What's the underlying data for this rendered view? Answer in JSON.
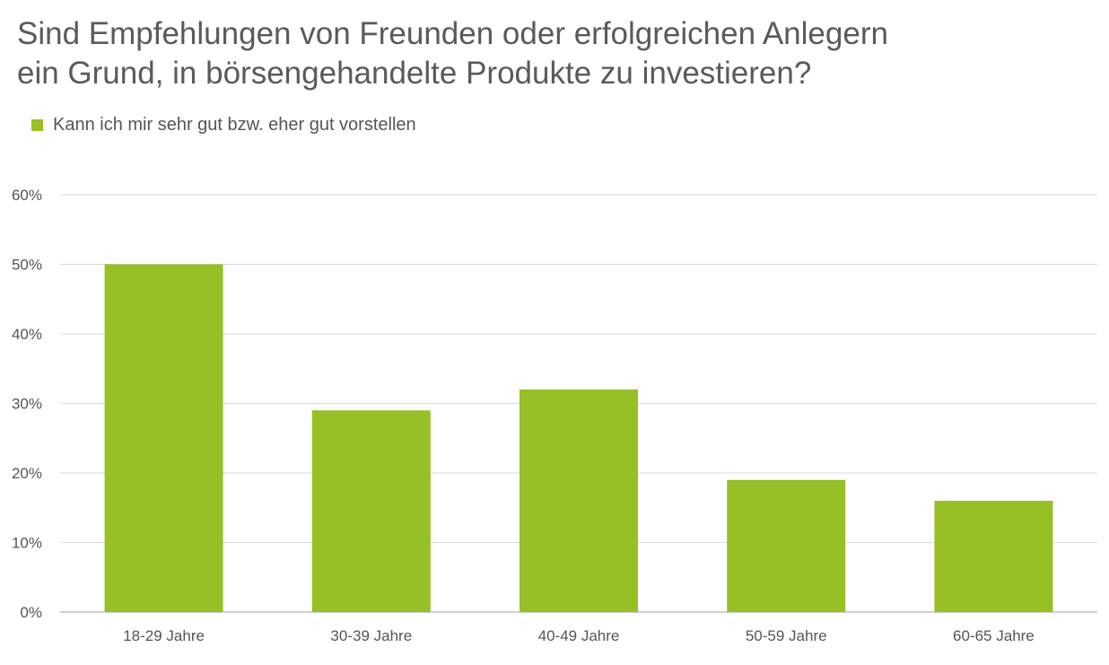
{
  "title": {
    "line1": "Sind Empfehlungen von Freunden oder erfolgreichen Anlegern",
    "line2": "ein Grund, in börsengehandelte Produkte zu investieren?"
  },
  "colors": {
    "bar": "#97c026",
    "grid": "#d9d9d9",
    "text": "#555555"
  },
  "chart_data": {
    "type": "bar",
    "categories": [
      "18-29 Jahre",
      "30-39 Jahre",
      "40-49 Jahre",
      "50-59 Jahre",
      "60-65 Jahre"
    ],
    "series": [
      {
        "name": "Kann ich mir sehr gut bzw. eher gut vorstellen",
        "values": [
          50,
          29,
          32,
          19,
          16
        ]
      }
    ],
    "yticks": [
      "0%",
      "10%",
      "20%",
      "30%",
      "40%",
      "50%",
      "60%"
    ],
    "ylim": [
      0,
      60
    ],
    "grid": true,
    "legend_position": "top-left"
  }
}
